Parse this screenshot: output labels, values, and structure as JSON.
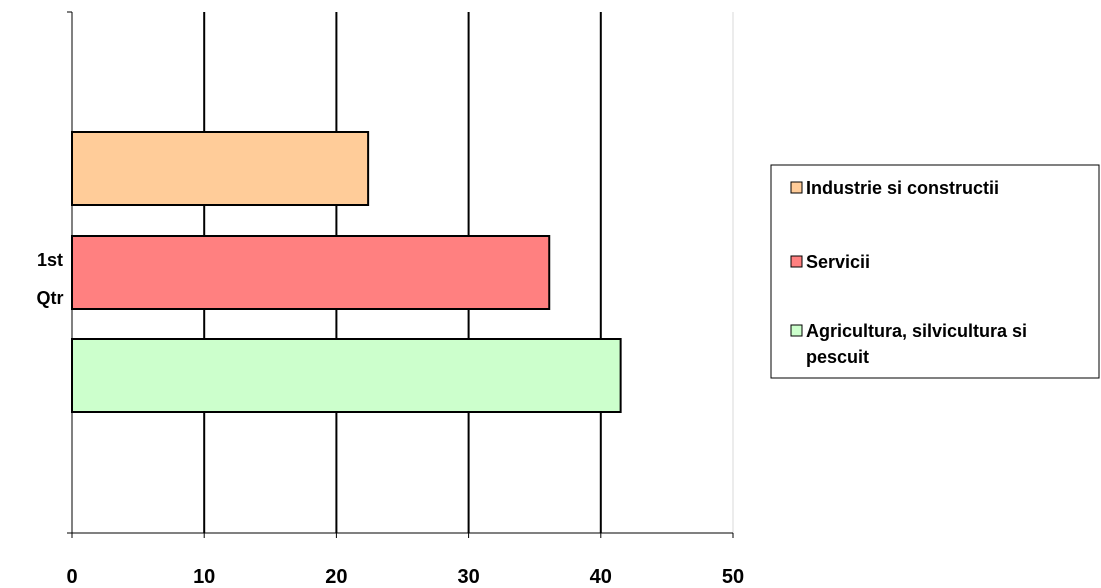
{
  "chart_data": {
    "type": "bar",
    "orientation": "horizontal",
    "categories": [
      "1st Qtr"
    ],
    "category_label_lines": [
      "1st",
      "Qtr"
    ],
    "series": [
      {
        "name": "Industrie si constructii",
        "values": [
          22.4
        ],
        "color": "#FFCC99"
      },
      {
        "name": "Servicii",
        "values": [
          36.1
        ],
        "color": "#FF8080"
      },
      {
        "name": "Agricultura, silvicultura si pescuit",
        "values": [
          41.5
        ],
        "color": "#CCFFCC"
      }
    ],
    "xlim": [
      0,
      50
    ],
    "xticks": [
      0,
      10,
      20,
      30,
      40,
      50
    ],
    "grid": true,
    "legend_position": "right",
    "title": "",
    "xlabel": "",
    "ylabel": ""
  }
}
